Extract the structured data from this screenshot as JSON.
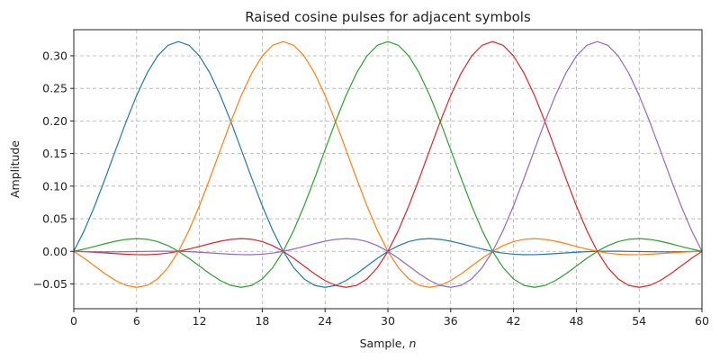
{
  "chart_data": {
    "type": "line",
    "title": "Raised cosine pulses for adjacent symbols",
    "xlabel_main": "Sample, ",
    "xlabel_var": "n",
    "ylabel": "Amplitude",
    "xlim": [
      0,
      60
    ],
    "ylim": [
      -0.088,
      0.34
    ],
    "xticks": [
      0,
      6,
      12,
      18,
      24,
      30,
      36,
      42,
      48,
      54,
      60
    ],
    "xtick_labels": [
      "0",
      "6",
      "12",
      "18",
      "24",
      "30",
      "36",
      "42",
      "48",
      "54",
      "60"
    ],
    "yticks": [
      -0.05,
      0.0,
      0.05,
      0.1,
      0.15,
      0.2,
      0.25,
      0.3
    ],
    "ytick_labels": [
      "−0.05",
      "0.00",
      "0.05",
      "0.10",
      "0.15",
      "0.20",
      "0.25",
      "0.30"
    ],
    "grid": true,
    "legend": "none",
    "pulse_model": {
      "peak": 0.3218,
      "symbol_period": 10,
      "rolloff": 0.35,
      "zero_crossing_spacing": 10
    },
    "series": [
      {
        "center": 10,
        "color": "#1f77b4"
      },
      {
        "center": 20,
        "color": "#ff7f0e"
      },
      {
        "center": 30,
        "color": "#2ca02c"
      },
      {
        "center": 40,
        "color": "#d62728"
      },
      {
        "center": 50,
        "color": "#9467bd"
      }
    ]
  }
}
